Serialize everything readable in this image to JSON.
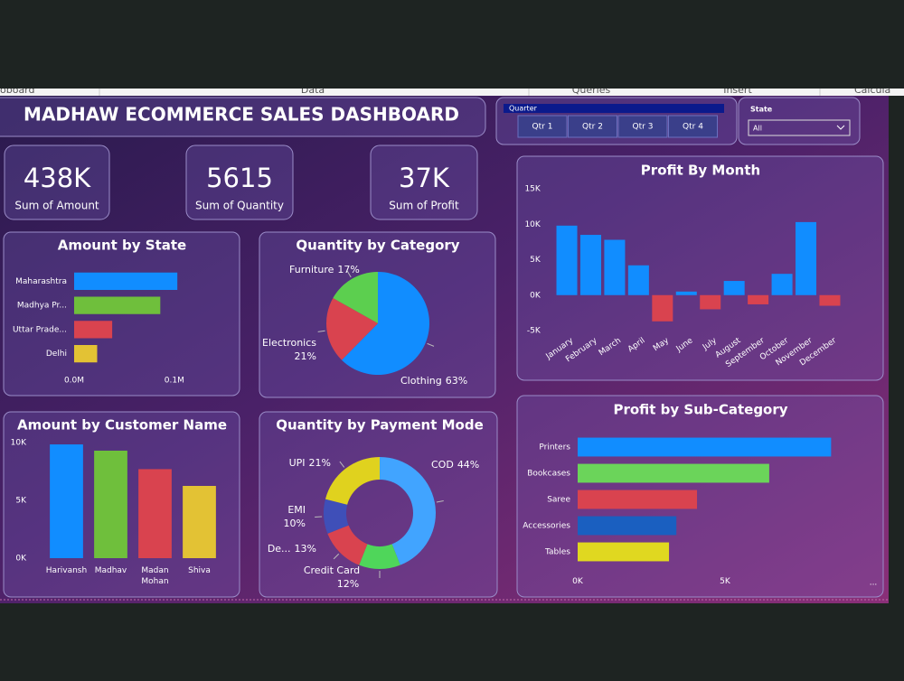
{
  "ribbon": {
    "tabs": [
      "oboard",
      "Data",
      "Queries",
      "Insert",
      "Calcula"
    ]
  },
  "header": {
    "title": "MADHAW ECOMMERCE SALES DASHBOARD"
  },
  "slicers": {
    "quarter": {
      "label": "Quarter",
      "options": [
        "Qtr 1",
        "Qtr 2",
        "Qtr 3",
        "Qtr 4"
      ]
    },
    "state": {
      "label": "State",
      "selected": "All"
    }
  },
  "kpis": [
    {
      "value": "438K",
      "label": "Sum of Amount"
    },
    {
      "value": "5615",
      "label": "Sum of Quantity"
    },
    {
      "value": "37K",
      "label": "Sum of Profit"
    }
  ],
  "more_options": "...",
  "chart_data": [
    {
      "type": "bar",
      "orientation": "horizontal",
      "title": "Amount by State",
      "categories": [
        "Maharashtra",
        "Madhya Pr...",
        "Uttar Prade...",
        "Delhi"
      ],
      "values": [
        0.103,
        0.086,
        0.038,
        0.023
      ],
      "colors": [
        "#118dff",
        "#6fbf3c",
        "#d9434f",
        "#e3c234"
      ],
      "xlim": [
        0,
        0.12
      ],
      "xticks": [
        {
          "value": 0,
          "label": "0.0M"
        },
        {
          "value": 0.1,
          "label": "0.1M"
        }
      ],
      "grid": false
    },
    {
      "type": "pie",
      "title": "Quantity by Category",
      "categories": [
        "Clothing",
        "Electronics",
        "Furniture"
      ],
      "values": [
        63,
        21,
        17
      ],
      "value_labels": [
        "63%",
        "21%",
        "17%"
      ],
      "colors": [
        "#118dff",
        "#d9434f",
        "#5ccf4f"
      ]
    },
    {
      "type": "bar",
      "orientation": "vertical",
      "title": "Amount by Customer Name",
      "categories": [
        "Harivansh",
        "Madhav",
        "Madan Mohan",
        "Shiva"
      ],
      "values": [
        9840,
        9300,
        7700,
        6250
      ],
      "colors": [
        "#118dff",
        "#6fbf3c",
        "#d9434f",
        "#e3c234"
      ],
      "ylim": [
        0,
        10000
      ],
      "yticks": [
        {
          "value": 0,
          "label": "0K"
        },
        {
          "value": 5000,
          "label": "5K"
        },
        {
          "value": 10000,
          "label": "10K"
        }
      ],
      "grid": false
    },
    {
      "type": "donut",
      "title": "Quantity by Payment Mode",
      "categories": [
        "COD",
        "Credit Card",
        "De...",
        "EMI",
        "UPI"
      ],
      "values": [
        44,
        12,
        13,
        10,
        21
      ],
      "value_labels": [
        "44%",
        "12%",
        "13%",
        "10%",
        "21%"
      ],
      "colors": [
        "#41a4ff",
        "#4fd65a",
        "#d9434f",
        "#3f4fb8",
        "#e0d21e"
      ]
    },
    {
      "type": "bar",
      "orientation": "vertical",
      "title": "Profit By Month",
      "categories": [
        "January",
        "February",
        "March",
        "April",
        "May",
        "June",
        "July",
        "August",
        "September",
        "October",
        "November",
        "December"
      ],
      "values": [
        9800,
        8500,
        7800,
        4200,
        -3700,
        500,
        -2000,
        2000,
        -1300,
        3000,
        10300,
        -1500
      ],
      "color": "#118dff",
      "negative_color": "#d9434f",
      "ylim": [
        -5000,
        15000
      ],
      "yticks": [
        {
          "value": -5000,
          "label": "-5K"
        },
        {
          "value": 0,
          "label": "0K"
        },
        {
          "value": 5000,
          "label": "5K"
        },
        {
          "value": 10000,
          "label": "10K"
        },
        {
          "value": 15000,
          "label": "15K"
        }
      ],
      "grid": false
    },
    {
      "type": "bar",
      "orientation": "horizontal",
      "title": "Profit by Sub-Category",
      "categories": [
        "Printers",
        "Bookcases",
        "Saree",
        "Accessories",
        "Tables"
      ],
      "values": [
        8600,
        6500,
        4050,
        3350,
        3100
      ],
      "colors": [
        "#118dff",
        "#6bd45a",
        "#d9434f",
        "#1a5fc0",
        "#e0d820"
      ],
      "xlim": [
        0,
        10000
      ],
      "xticks": [
        {
          "value": 0,
          "label": "0K"
        },
        {
          "value": 5000,
          "label": "5K"
        }
      ],
      "grid": false
    }
  ]
}
